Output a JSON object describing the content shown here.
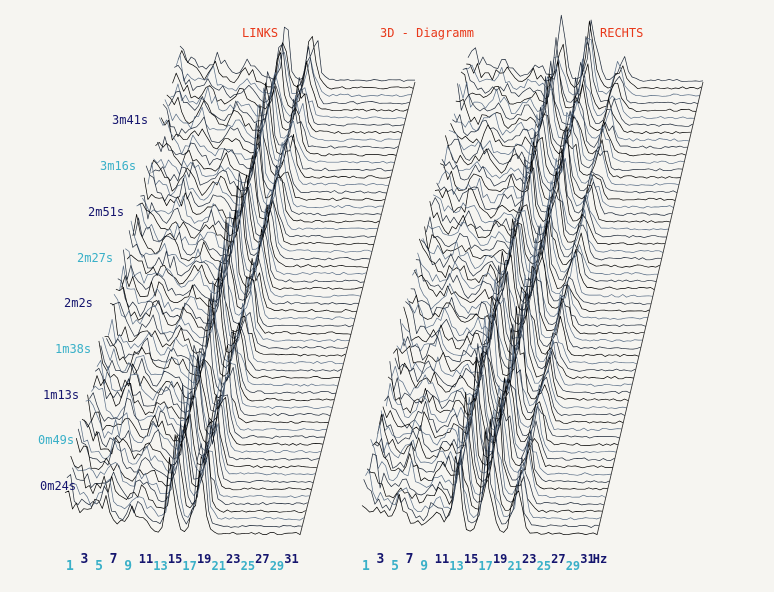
{
  "chart_data": {
    "type": "line",
    "title": "3D - Diagramm",
    "channels": [
      "LINKS",
      "RECHTS"
    ],
    "unit": "Hz",
    "xticks": [
      {
        "label": "1",
        "color": "#3ab0c8"
      },
      {
        "label": "3",
        "color": "#15156e"
      },
      {
        "label": "5",
        "color": "#3ab0c8"
      },
      {
        "label": "7",
        "color": "#15156e"
      },
      {
        "label": "9",
        "color": "#3ab0c8"
      },
      {
        "label": "11",
        "color": "#15156e"
      },
      {
        "label": "13",
        "color": "#3ab0c8"
      },
      {
        "label": "15",
        "color": "#15156e"
      },
      {
        "label": "17",
        "color": "#3ab0c8"
      },
      {
        "label": "19",
        "color": "#15156e"
      },
      {
        "label": "21",
        "color": "#3ab0c8"
      },
      {
        "label": "23",
        "color": "#15156e"
      },
      {
        "label": "25",
        "color": "#3ab0c8"
      },
      {
        "label": "27",
        "color": "#15156e"
      },
      {
        "label": "29",
        "color": "#3ab0c8"
      },
      {
        "label": "31",
        "color": "#15156e"
      }
    ],
    "time_labels": [
      {
        "label": "0m24s",
        "color": "#15156e"
      },
      {
        "label": "0m49s",
        "color": "#3ab0c8"
      },
      {
        "label": "1m13s",
        "color": "#15156e"
      },
      {
        "label": "1m38s",
        "color": "#3ab0c8"
      },
      {
        "label": "2m2s",
        "color": "#15156e"
      },
      {
        "label": "2m27s",
        "color": "#3ab0c8"
      },
      {
        "label": "2m51s",
        "color": "#15156e"
      },
      {
        "label": "3m16s",
        "color": "#3ab0c8"
      },
      {
        "label": "3m41s",
        "color": "#15156e"
      }
    ],
    "colors": {
      "title": "#e8391b",
      "trace": "#000000"
    }
  }
}
